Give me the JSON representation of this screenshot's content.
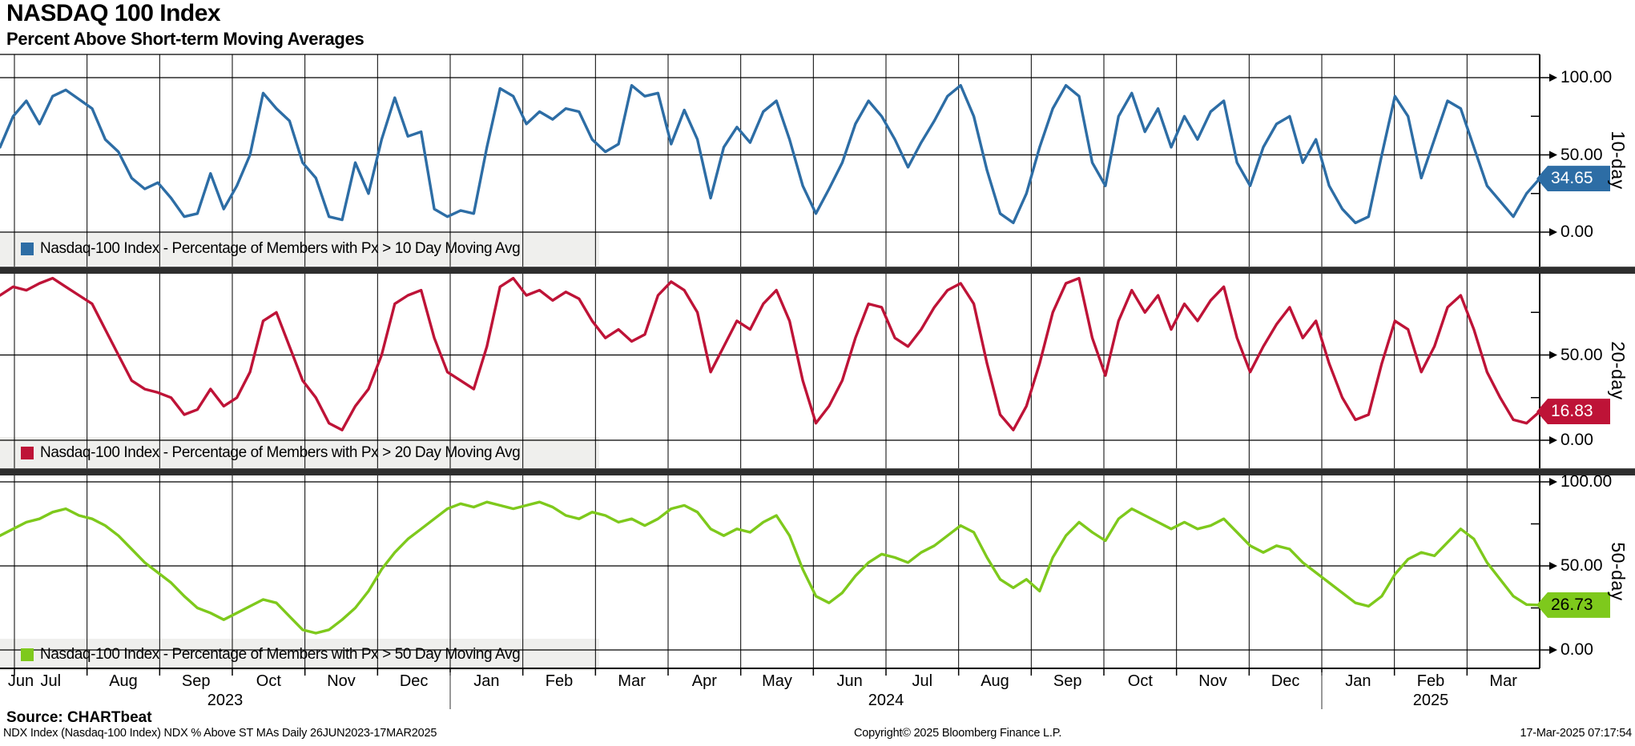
{
  "header": {
    "title": "NASDAQ 100 Index",
    "subtitle": "Percent Above Short-term Moving Averages"
  },
  "colors": {
    "blue": "#2D6DA5",
    "red": "#BE1337",
    "green": "#7EC91C",
    "grid": "#000000",
    "legend_band": "#EFEFED",
    "divider": "#2E2E2E",
    "year_separator": "#777777"
  },
  "chart_data": [
    {
      "type": "line",
      "name": "10-day",
      "axis_label": "10-day",
      "legend": "Nasdaq-100 Index - Percentage of Members with Px > 10 Day Moving Avg",
      "color": "#2D6DA5",
      "tag_text_color": "#FFFFFF",
      "last_value": 34.65,
      "last_value_label": "34.65",
      "ylim": [
        0,
        100
      ],
      "yticks": [
        0,
        50,
        100
      ],
      "ytick_labels": {
        "0": "0.00",
        "50": "50.00",
        "100": "100.00"
      },
      "x_start": "26JUN2023",
      "x_end": "17MAR2025",
      "values": [
        55,
        75,
        85,
        70,
        88,
        92,
        86,
        80,
        60,
        52,
        35,
        28,
        32,
        22,
        10,
        12,
        38,
        15,
        30,
        50,
        90,
        80,
        72,
        45,
        35,
        10,
        8,
        45,
        25,
        60,
        87,
        62,
        65,
        15,
        10,
        14,
        12,
        55,
        93,
        88,
        70,
        78,
        73,
        80,
        78,
        60,
        52,
        57,
        95,
        88,
        90,
        57,
        79,
        60,
        22,
        55,
        68,
        58,
        78,
        85,
        60,
        30,
        12,
        28,
        45,
        70,
        85,
        75,
        60,
        42,
        58,
        72,
        88,
        95,
        75,
        40,
        12,
        6,
        25,
        55,
        80,
        95,
        88,
        45,
        30,
        75,
        90,
        65,
        80,
        55,
        75,
        60,
        78,
        85,
        45,
        30,
        55,
        70,
        75,
        45,
        60,
        30,
        15,
        6,
        10,
        50,
        88,
        75,
        35,
        60,
        85,
        80,
        55,
        30,
        20,
        10,
        25,
        34.65
      ]
    },
    {
      "type": "line",
      "name": "20-day",
      "axis_label": "20-day",
      "legend": "Nasdaq-100 Index - Percentage of Members with Px > 20 Day Moving Avg",
      "color": "#BE1337",
      "tag_text_color": "#FFFFFF",
      "last_value": 16.83,
      "last_value_label": "16.83",
      "ylim": [
        0,
        100
      ],
      "yticks": [
        0,
        50,
        100
      ],
      "ytick_labels": {
        "0": "0.00",
        "50": "50.00",
        "100": "100.00"
      },
      "x_start": "26JUN2023",
      "x_end": "17MAR2025",
      "values": [
        85,
        90,
        88,
        92,
        95,
        90,
        85,
        80,
        65,
        50,
        35,
        30,
        28,
        25,
        15,
        18,
        30,
        20,
        25,
        40,
        70,
        75,
        55,
        35,
        25,
        10,
        6,
        20,
        30,
        50,
        80,
        85,
        88,
        60,
        40,
        35,
        30,
        55,
        90,
        95,
        85,
        88,
        82,
        87,
        83,
        70,
        60,
        65,
        58,
        62,
        85,
        93,
        88,
        75,
        40,
        55,
        70,
        65,
        80,
        88,
        70,
        35,
        10,
        20,
        35,
        60,
        80,
        78,
        60,
        55,
        65,
        78,
        88,
        92,
        80,
        45,
        15,
        6,
        20,
        45,
        75,
        92,
        95,
        60,
        38,
        70,
        88,
        75,
        85,
        65,
        80,
        70,
        82,
        90,
        60,
        40,
        55,
        68,
        78,
        60,
        70,
        45,
        25,
        12,
        15,
        45,
        70,
        65,
        40,
        55,
        78,
        85,
        65,
        40,
        25,
        12,
        10,
        16.83
      ]
    },
    {
      "type": "line",
      "name": "50-day",
      "axis_label": "50-day",
      "legend": "Nasdaq-100 Index - Percentage of Members with Px > 50 Day Moving Avg",
      "color": "#7EC91C",
      "tag_text_color": "#000000",
      "last_value": 26.73,
      "last_value_label": "26.73",
      "ylim": [
        0,
        100
      ],
      "yticks": [
        0,
        50,
        100
      ],
      "ytick_labels": {
        "0": "0.00",
        "50": "50.00",
        "100": "100.00"
      },
      "x_start": "26JUN2023",
      "x_end": "17MAR2025",
      "values": [
        68,
        72,
        76,
        78,
        82,
        84,
        80,
        78,
        74,
        68,
        60,
        52,
        46,
        40,
        32,
        25,
        22,
        18,
        22,
        26,
        30,
        28,
        20,
        12,
        10,
        12,
        18,
        25,
        35,
        48,
        58,
        66,
        72,
        78,
        84,
        87,
        85,
        88,
        86,
        84,
        86,
        88,
        85,
        80,
        78,
        82,
        80,
        76,
        78,
        74,
        78,
        84,
        86,
        82,
        72,
        68,
        72,
        70,
        76,
        80,
        68,
        48,
        32,
        28,
        34,
        44,
        52,
        57,
        55,
        52,
        58,
        62,
        68,
        74,
        70,
        55,
        42,
        37,
        42,
        35,
        55,
        68,
        76,
        70,
        65,
        78,
        84,
        80,
        76,
        72,
        76,
        72,
        74,
        78,
        70,
        62,
        58,
        62,
        60,
        52,
        46,
        40,
        34,
        28,
        26,
        32,
        45,
        54,
        58,
        56,
        64,
        72,
        66,
        52,
        42,
        32,
        27,
        26.73
      ]
    }
  ],
  "x_axis": {
    "months": [
      "Jun",
      "Jul",
      "Aug",
      "Sep",
      "Oct",
      "Nov",
      "Dec",
      "Jan",
      "Feb",
      "Mar",
      "Apr",
      "May",
      "Jun",
      "Jul",
      "Aug",
      "Sep",
      "Oct",
      "Nov",
      "Dec",
      "Jan",
      "Feb",
      "Mar"
    ],
    "years": [
      "2023",
      "2024",
      "2025"
    ]
  },
  "footer": {
    "source": "Source: CHARTbeat",
    "left": "NDX Index (Nasdaq-100 Index) NDX % Above ST MAs  Daily 26JUN2023-17MAR2025",
    "center": "Copyright© 2025 Bloomberg Finance L.P.",
    "right": "17-Mar-2025 07:17:54"
  }
}
